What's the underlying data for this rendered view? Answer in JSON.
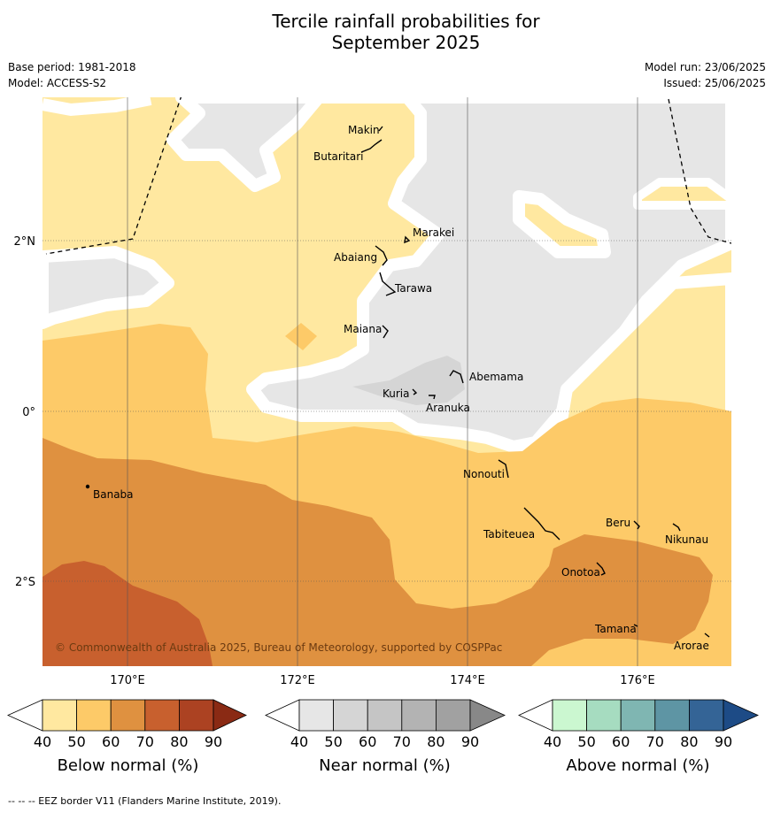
{
  "title": {
    "line1": "Tercile rainfall probabilities for",
    "line2": "September 2025"
  },
  "meta": {
    "base_period": "Base period: 1981-2018",
    "model": "Model: ACCESS-S2",
    "model_run": "Model run: 23/06/2025",
    "issued": "Issued: 25/06/2025"
  },
  "axes": {
    "lon_labels": [
      "170°E",
      "172°E",
      "174°E",
      "176°E"
    ],
    "lat_labels": [
      "2°N",
      "0°",
      "2°S"
    ]
  },
  "islands": [
    "Makin",
    "Butaritari",
    "Marakei",
    "Abaiang",
    "Tarawa",
    "Maiana",
    "Abemama",
    "Kuria",
    "Aranuka",
    "Nonouti",
    "Banaba",
    "Tabiteuea",
    "Beru",
    "Nikunau",
    "Onotoa",
    "Tamana",
    "Arorae"
  ],
  "copyright": "© Commonwealth of Australia 2025, Bureau of Meteorology, supported by COSPPac",
  "colorbars": [
    {
      "title": "Below normal (%)",
      "ticks": [
        "40",
        "50",
        "60",
        "70",
        "80",
        "90"
      ],
      "colors": [
        "#ffe8a0",
        "#fdca68",
        "#df9140",
        "#c8602e",
        "#ac4222",
        "#8a2a14"
      ]
    },
    {
      "title": "Near normal (%)",
      "ticks": [
        "40",
        "50",
        "60",
        "70",
        "80",
        "90"
      ],
      "colors": [
        "#e6e6e6",
        "#d5d5d5",
        "#c5c5c5",
        "#b3b3b3",
        "#a1a1a1",
        "#888888"
      ]
    },
    {
      "title": "Above normal (%)",
      "ticks": [
        "40",
        "50",
        "60",
        "70",
        "80",
        "90"
      ],
      "colors": [
        "#cbf7d0",
        "#a6dcc0",
        "#7fb6b2",
        "#5e95a4",
        "#346496",
        "#1d4b86"
      ]
    }
  ],
  "footer": "--  --  -- EEZ border V11 (Flanders Marine Institute, 2019)."
}
